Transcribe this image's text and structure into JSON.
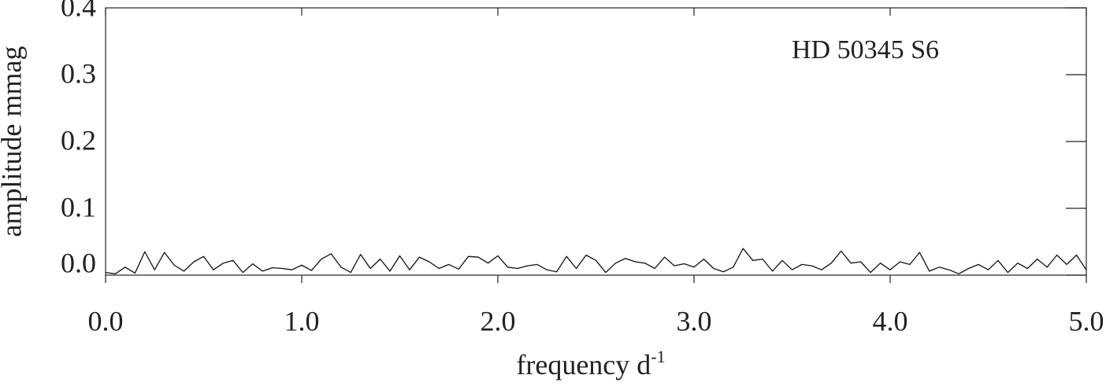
{
  "chart_data": {
    "type": "line",
    "annotation": "HD 50345 S6",
    "xlabel": "frequency d",
    "xlabel_sup": "-1",
    "ylabel": "amplitude mmag",
    "xlim": [
      0,
      5
    ],
    "ylim": [
      0,
      0.4
    ],
    "xticks": [
      {
        "value": 0,
        "label": "0.0"
      },
      {
        "value": 1,
        "label": "1.0"
      },
      {
        "value": 2,
        "label": "2.0"
      },
      {
        "value": 3,
        "label": "3.0"
      },
      {
        "value": 4,
        "label": "4.0"
      },
      {
        "value": 5,
        "label": "5.0"
      }
    ],
    "yticks": [
      {
        "value": 0,
        "label": "0.0"
      },
      0.1,
      0.2,
      0.3,
      0.4
    ],
    "color": "#111111",
    "x": [
      0,
      0.05,
      0.1,
      0.15,
      0.2,
      0.25,
      0.3,
      0.35,
      0.4,
      0.45,
      0.5,
      0.55,
      0.6,
      0.65,
      0.7,
      0.75,
      0.8,
      0.85,
      0.9,
      0.95,
      1,
      1.05,
      1.1,
      1.15,
      1.2,
      1.25,
      1.3,
      1.35,
      1.4,
      1.45,
      1.5,
      1.55,
      1.6,
      1.65,
      1.7,
      1.75,
      1.8,
      1.85,
      1.9,
      1.95,
      2,
      2.05,
      2.1,
      2.15,
      2.2,
      2.25,
      2.3,
      2.35,
      2.4,
      2.45,
      2.5,
      2.55,
      2.6,
      2.65,
      2.7,
      2.75,
      2.8,
      2.85,
      2.9,
      2.95,
      3,
      3.05,
      3.1,
      3.15,
      3.2,
      3.25,
      3.3,
      3.35,
      3.4,
      3.45,
      3.5,
      3.55,
      3.6,
      3.65,
      3.7,
      3.75,
      3.8,
      3.85,
      3.9,
      3.95,
      4,
      4.05,
      4.1,
      4.15,
      4.2,
      4.25,
      4.3,
      4.35,
      4.4,
      4.45,
      4.5,
      4.55,
      4.6,
      4.65,
      4.7,
      4.75,
      4.8,
      4.85,
      4.9,
      4.95,
      5
    ],
    "values": [
      0.004,
      0.002,
      0.012,
      0.003,
      0.035,
      0.008,
      0.034,
      0.015,
      0.006,
      0.02,
      0.028,
      0.008,
      0.018,
      0.022,
      0.004,
      0.017,
      0.006,
      0.011,
      0.01,
      0.008,
      0.015,
      0.007,
      0.024,
      0.032,
      0.012,
      0.004,
      0.031,
      0.01,
      0.024,
      0.006,
      0.029,
      0.008,
      0.027,
      0.02,
      0.01,
      0.016,
      0.009,
      0.028,
      0.027,
      0.018,
      0.029,
      0.012,
      0.01,
      0.014,
      0.016,
      0.008,
      0.005,
      0.028,
      0.01,
      0.03,
      0.022,
      0.004,
      0.018,
      0.025,
      0.02,
      0.018,
      0.01,
      0.027,
      0.014,
      0.017,
      0.012,
      0.024,
      0.01,
      0.005,
      0.012,
      0.04,
      0.022,
      0.024,
      0.006,
      0.022,
      0.008,
      0.016,
      0.014,
      0.008,
      0.018,
      0.036,
      0.018,
      0.02,
      0.004,
      0.018,
      0.008,
      0.02,
      0.016,
      0.034,
      0.006,
      0.012,
      0.008,
      0.002,
      0.01,
      0.016,
      0.008,
      0.022,
      0.004,
      0.018,
      0.01,
      0.024,
      0.012,
      0.03,
      0.016,
      0.03,
      0.008
    ]
  }
}
